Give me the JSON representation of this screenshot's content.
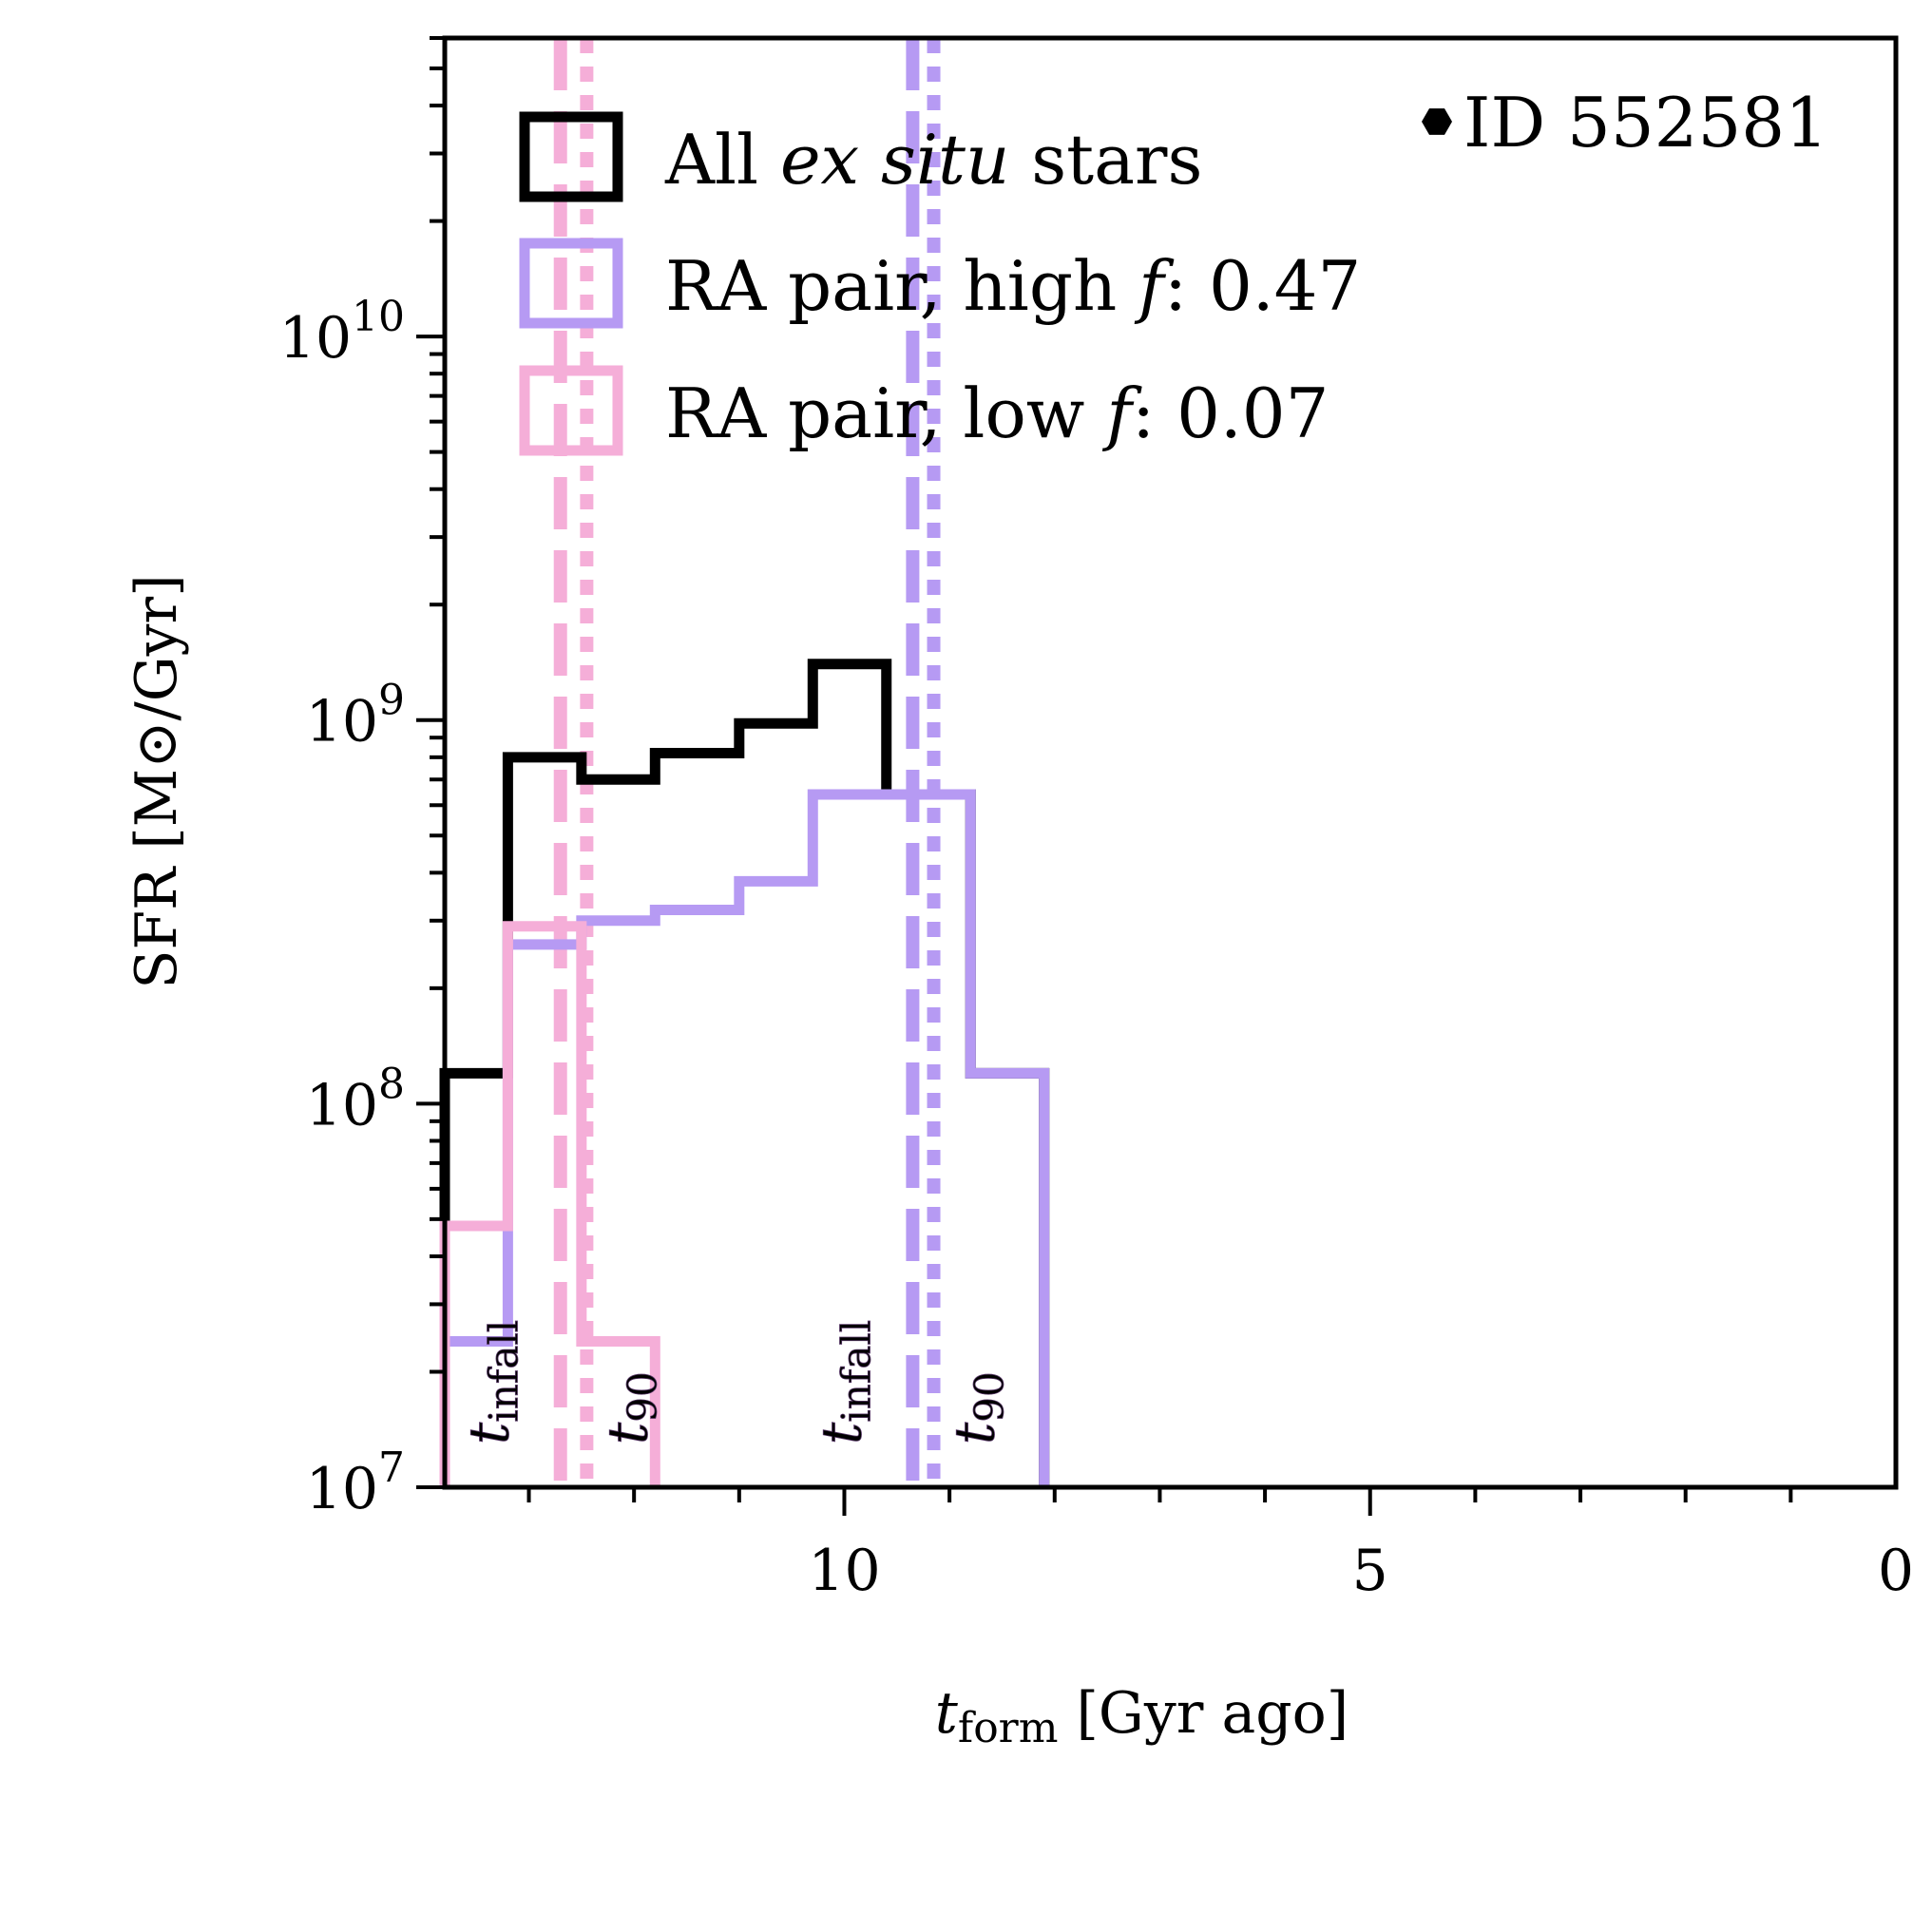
{
  "chart_data": {
    "type": "histogram-step",
    "xlabel": "t",
    "xlabel_sub": "form",
    "xlabel_rest": " [Gyr ago]",
    "ylabel": "SFR [M⊙/Gyr]",
    "xlim": [
      13.8,
      0
    ],
    "ylim": [
      10000000,
      60000000000
    ],
    "yscale": "log",
    "xticks": [
      10,
      5,
      0
    ],
    "xtick_labels": [
      "10",
      "5",
      "0"
    ],
    "yticks": [
      10000000,
      100000000,
      1000000000,
      10000000000
    ],
    "ytick_bases": [
      "10",
      "10",
      "10",
      "10"
    ],
    "ytick_exps": [
      "7",
      "8",
      "9",
      "10"
    ],
    "annotation": "ID 552581",
    "series": [
      {
        "name": "All ex situ stars",
        "legend_prefix": "All ",
        "legend_italic": "ex situ",
        "legend_suffix": " stars",
        "color": "#000000",
        "edges": [
          13.8,
          13.2,
          12.5,
          11.8,
          11.0,
          10.3,
          9.6,
          8.8,
          8.1
        ],
        "values": [
          120000000,
          800000000,
          700000000,
          820000000,
          980000000,
          1400000000,
          640000000,
          120000000
        ]
      },
      {
        "name": "RA pair, high f: 0.47",
        "legend_prefix": "RA pair, high ",
        "legend_italic": "f",
        "legend_suffix": ": 0.47",
        "color": "#b69af3",
        "edges": [
          13.8,
          13.2,
          12.5,
          11.8,
          11.0,
          10.3,
          9.6,
          8.8,
          8.1
        ],
        "values": [
          24000000,
          260000000,
          300000000,
          320000000,
          380000000,
          640000000,
          640000000,
          120000000
        ]
      },
      {
        "name": "RA pair, low f: 0.07",
        "legend_prefix": "RA pair, low ",
        "legend_italic": "f",
        "legend_suffix": ": 0.07",
        "color": "#f5aed8",
        "edges": [
          13.8,
          13.2,
          12.5,
          11.8
        ],
        "values": [
          48000000,
          290000000,
          24000000
        ]
      }
    ],
    "vlines": [
      {
        "series": "low",
        "kind": "t_infall",
        "x": 12.7,
        "style": "dashed",
        "color": "#f5aed8",
        "label": "t",
        "label_sub": "infall"
      },
      {
        "series": "low",
        "kind": "t_90",
        "x": 12.45,
        "style": "dotted",
        "color": "#f5aed8",
        "label": "t",
        "label_sub": "90"
      },
      {
        "series": "high",
        "kind": "t_infall",
        "x": 9.35,
        "style": "dashed",
        "color": "#b69af3",
        "label": "t",
        "label_sub": "infall"
      },
      {
        "series": "high",
        "kind": "t_90",
        "x": 9.15,
        "style": "dotted",
        "color": "#b69af3",
        "label": "t",
        "label_sub": "90"
      }
    ]
  }
}
